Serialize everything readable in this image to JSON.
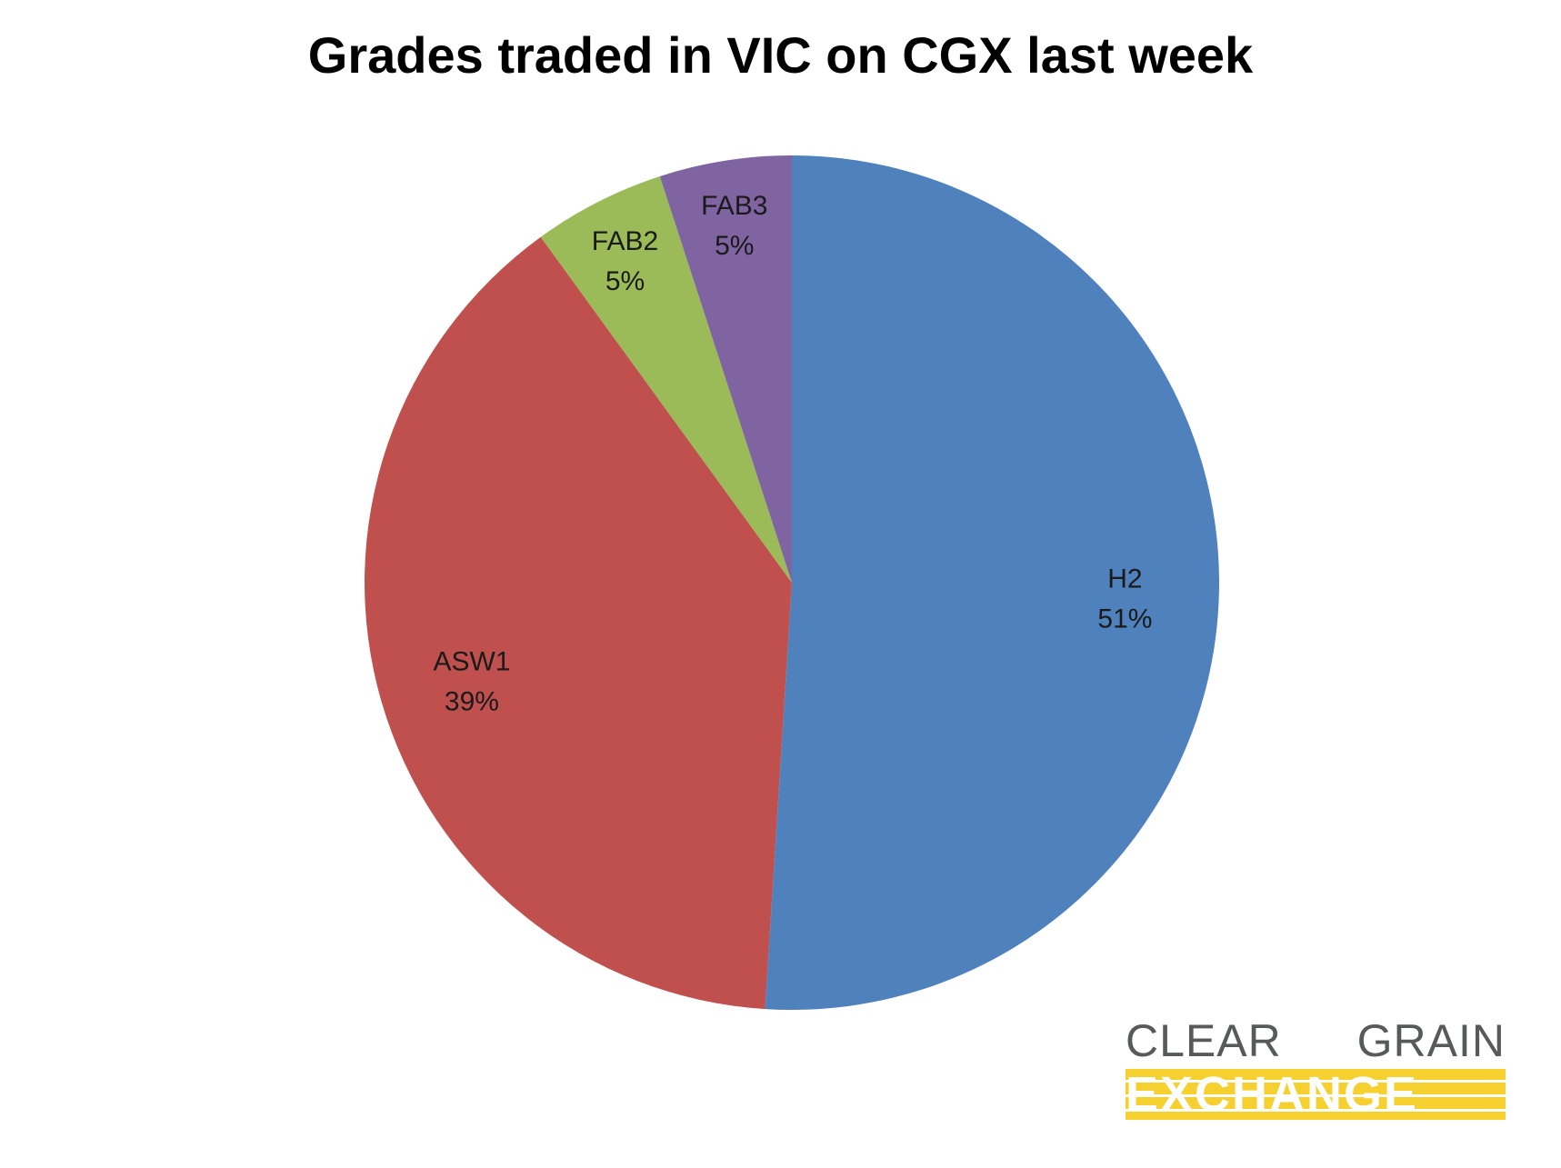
{
  "chart_data": {
    "type": "pie",
    "title": "Grades traded in VIC on CGX last week",
    "start_angle_deg": 0,
    "direction": "clockwise",
    "slices": [
      {
        "name": "H2",
        "value": 51,
        "label": "51%",
        "color": "#4f81bd"
      },
      {
        "name": "ASW1",
        "value": 39,
        "label": "39%",
        "color": "#c0504d"
      },
      {
        "name": "FAB2",
        "value": 5,
        "label": "5%",
        "color": "#9bbb59"
      },
      {
        "name": "FAB3",
        "value": 5,
        "label": "5%",
        "color": "#8064a2"
      }
    ]
  },
  "logo": {
    "line1": "CLEAR GRAIN",
    "line2": "EXCHANGE",
    "text_color": "#58595b",
    "accent_color": "#f6d02f"
  }
}
